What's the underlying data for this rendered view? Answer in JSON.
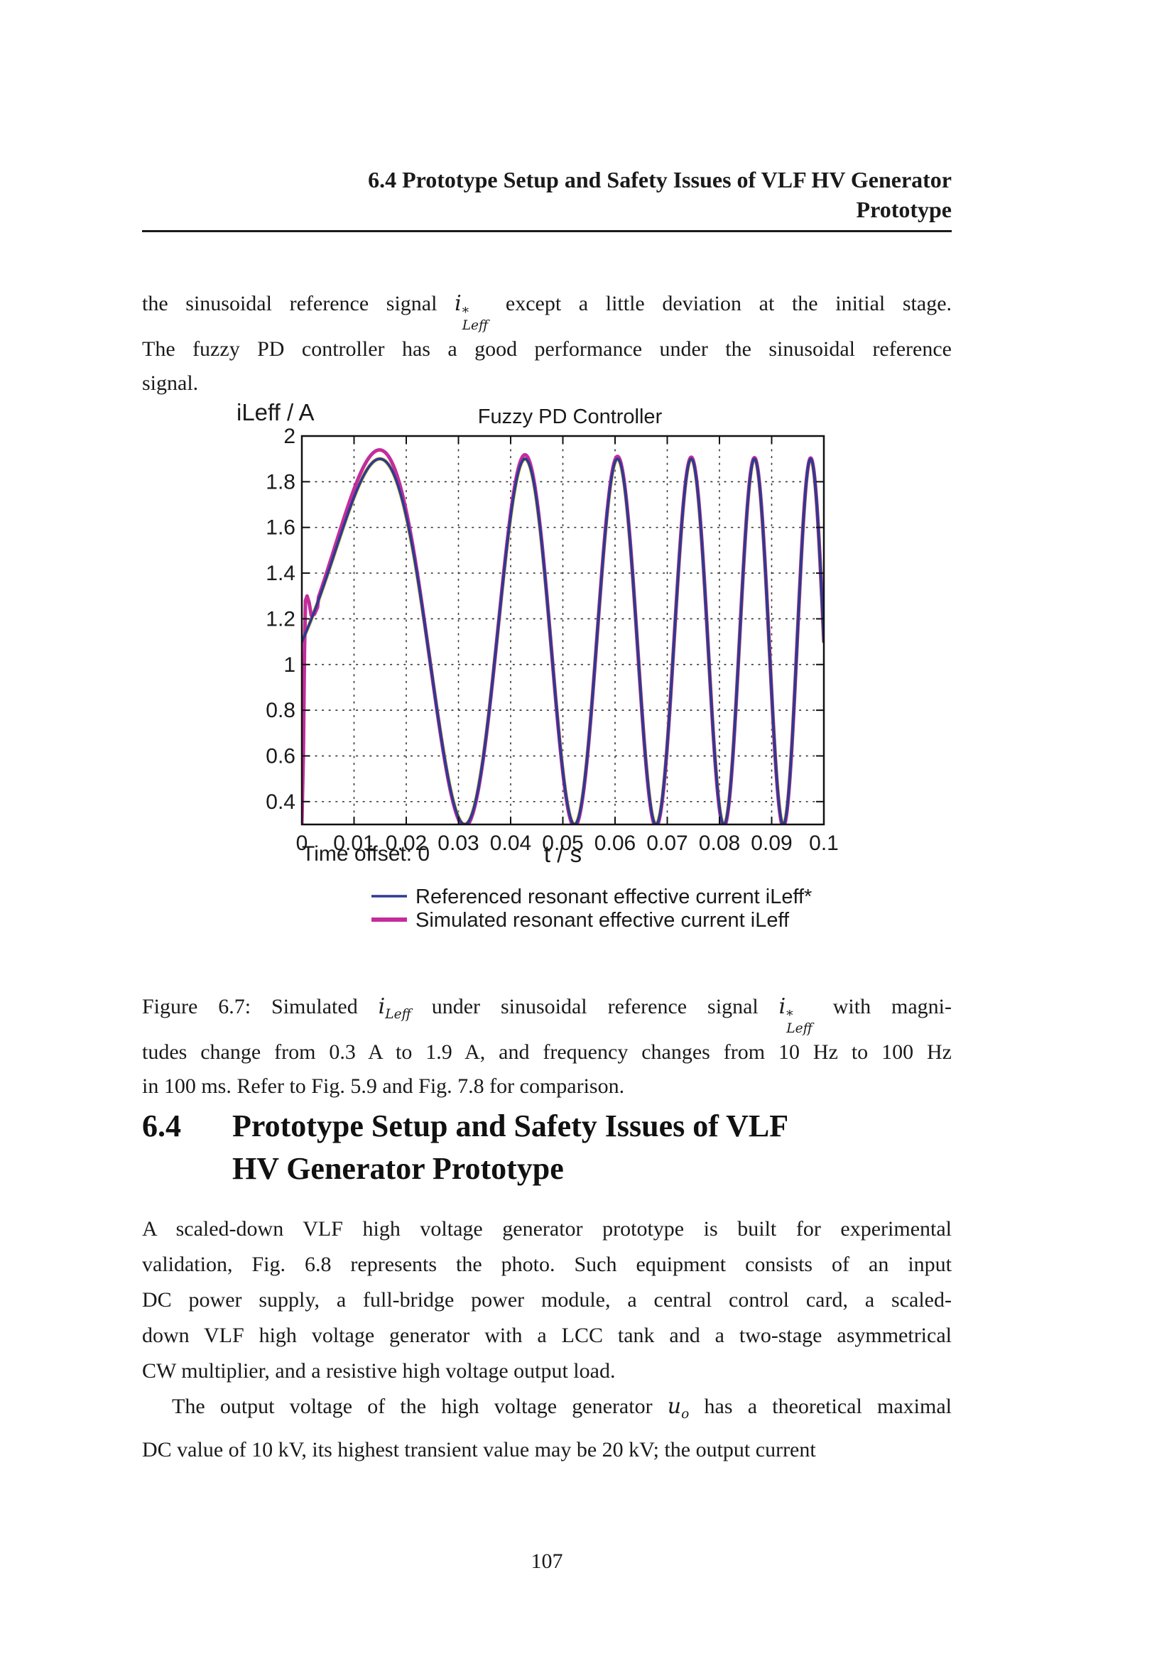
{
  "running_header": {
    "line1": "6.4 Prototype Setup and Safety Issues of VLF HV Generator",
    "line2": "Prototype"
  },
  "intro": {
    "lines": [
      "the sinusoidal reference signal $i^{*}_{Leff}$ except a little deviation at the initial stage.",
      "The fuzzy PD controller has a good performance under the sinusoidal reference",
      "signal."
    ]
  },
  "figure_caption": {
    "lines": [
      "Figure 6.7:  Simulated $i_{Leff}$ under sinusoidal reference signal $i^{*}_{Leff}$ with magni-",
      "tudes change from 0.3 A to 1.9 A, and frequency changes from 10 Hz to 100 Hz",
      "in 100 ms. Refer to Fig.  5.9 and Fig.  7.8 for comparison."
    ]
  },
  "section_heading": {
    "number": "6.4",
    "title_line1": "Prototype Setup and Safety Issues of VLF",
    "title_line2": "HV Generator Prototype"
  },
  "body": {
    "lines": [
      "A scaled-down VLF high voltage generator prototype is built for experimental",
      "validation, Fig.  6.8 represents the photo.  Such equipment consists of an input",
      "DC power supply, a full-bridge power module, a central control card, a scaled-",
      "down VLF high voltage generator with a LCC tank and a two-stage asymmetrical",
      "CW multiplier, and a resistive high voltage output load.",
      "The output voltage of the high voltage generator $u_{o}$ has a theoretical maximal",
      "DC value of 10 kV, its highest transient value may be 20 kV; the output current"
    ]
  },
  "page_number": "107",
  "chart_data": {
    "type": "line",
    "title": "Fuzzy PD Controller",
    "ylabel": "iLeff / A",
    "xlabel": "t / s",
    "time_offset_label": "Time offset: 0",
    "xlim": [
      0,
      0.1
    ],
    "ylim": [
      0.3,
      2.0
    ],
    "xticks": [
      0,
      0.01,
      0.02,
      0.03,
      0.04,
      0.05,
      0.06,
      0.07,
      0.08,
      0.09,
      0.1
    ],
    "xtick_labels": [
      "0",
      "0.01",
      "0.02",
      "0.03",
      "0.04",
      "0.05",
      "0.06",
      "0.07",
      "0.08",
      "0.09",
      "0.1"
    ],
    "yticks": [
      0.4,
      0.6,
      0.8,
      1.0,
      1.2,
      1.4,
      1.6,
      1.8,
      2.0
    ],
    "ytick_labels": [
      "0.4",
      "0.6",
      "0.8",
      "1",
      "1.2",
      "1.4",
      "1.6",
      "1.8",
      "2"
    ],
    "grid": "dotted",
    "legend_position": "below-plot",
    "signal_model": {
      "kind": "linear-chirp",
      "offset_a": 1.1,
      "amplitude_a": 0.8,
      "f0_hz": 10,
      "f1_hz": 100,
      "duration_s": 0.1,
      "min_a": 0.3,
      "max_a": 1.9
    },
    "series": [
      {
        "name": "Referenced resonant effective current iLeff*",
        "color": "#2e3a93",
        "width": 3.8,
        "role": "reference"
      },
      {
        "name": "Simulated resonant effective current iLeff",
        "color": "#c32d9b",
        "width": 5,
        "role": "simulated",
        "peak_overshoot_a": 0.06,
        "overshoot_decay_tau_s": 0.035,
        "trough_undershoot_a": 0.01,
        "startup_transient": [
          [
            0,
            0.3
          ],
          [
            0.0003,
            0.62
          ],
          [
            0.0005,
            1.05
          ],
          [
            0.0007,
            1.28
          ],
          [
            0.001,
            1.3
          ],
          [
            0.0014,
            1.27
          ],
          [
            0.0018,
            1.215
          ],
          [
            0.0024,
            1.22
          ],
          [
            0.003,
            1.25
          ]
        ]
      }
    ],
    "underlay_trace_color": "#e3cf4a",
    "key_points": {
      "peaks_t_s": [
        0.0147,
        0.0428,
        0.0605,
        0.0746,
        0.0867,
        0.0975
      ],
      "peak_value_a": 1.9,
      "troughs_t_s": [
        0.0312,
        0.0522,
        0.0679,
        0.0808,
        0.0922
      ],
      "trough_value_a": 0.3,
      "start_value_a": 1.1,
      "end_value_a": 1.1
    }
  }
}
